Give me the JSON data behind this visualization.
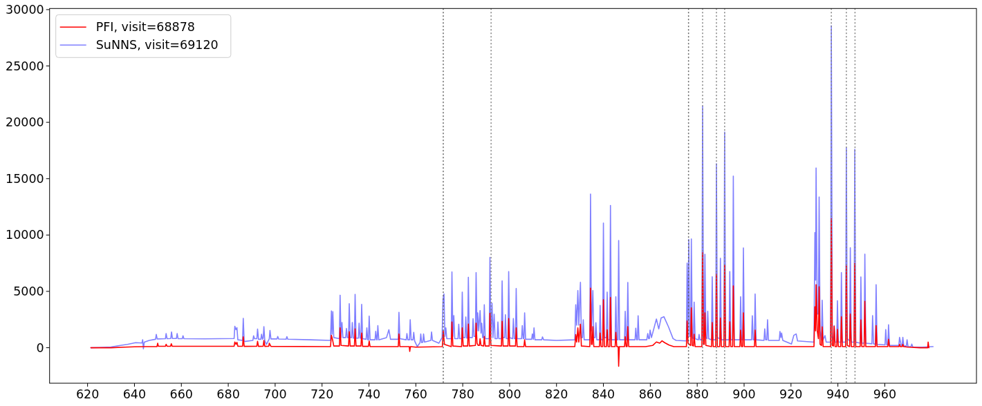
{
  "chart_data": {
    "type": "line",
    "series": [
      {
        "name": "PFI, visit=68878",
        "color": "#ff0000",
        "x": [
          621.4,
          630,
          636,
          640,
          645,
          649.6,
          649.9,
          650.2,
          653.2,
          653.5,
          653.9,
          655.4,
          655.7,
          656.1,
          682.5,
          682.8,
          683.3,
          683.7,
          684.1,
          686.1,
          686.4,
          686.8,
          692.2,
          692.5,
          692.9,
          694.9,
          695.2,
          695.6,
          697.3,
          697.5,
          698.2,
          723.6,
          724.0,
          724.5,
          725.0,
          727.4,
          727.7,
          728.1,
          731.3,
          731.6,
          732.0,
          733.8,
          734.1,
          734.5,
          736.6,
          736.9,
          737.3,
          739.8,
          740.1,
          740.5,
          752.5,
          752.8,
          753.2,
          757.2,
          757.4,
          757.7,
          760,
          771.3,
          771.7,
          772.2,
          775.1,
          775.4,
          775.8,
          779.5,
          779.8,
          780.2,
          782.1,
          782.4,
          782.8,
          785.4,
          785.7,
          786.1,
          786.6,
          787.1,
          787.4,
          787.8,
          788.9,
          789.2,
          789.6,
          791.3,
          791.6,
          792.0,
          796.5,
          796.8,
          797.2,
          799.3,
          799.6,
          800.0,
          802.5,
          802.8,
          803.2,
          806.1,
          806.4,
          806.8,
          827.8,
          828.2,
          828.6,
          829.1,
          829.5,
          830.2,
          830.6,
          834.2,
          834.5,
          834.9,
          835.2,
          835.5,
          835.9,
          838.3,
          838.6,
          839.0,
          839.7,
          840.0,
          840.4,
          841.3,
          841.6,
          842.0,
          842.7,
          843.0,
          843.4,
          845.0,
          845.3,
          845.7,
          846.3,
          846.5,
          846.8,
          849.0,
          849.3,
          849.7,
          850.1,
          850.4,
          850.8,
          858,
          861,
          862.6,
          864.0,
          865.0,
          866.1,
          868,
          870,
          875.4,
          875.7,
          876.1,
          877.2,
          877.5,
          877.9,
          878.4,
          878.7,
          879.1,
          882.0,
          882.3,
          882.7,
          883.0,
          883.3,
          883.7,
          886.1,
          886.4,
          886.8,
          887.9,
          888.2,
          888.6,
          889.6,
          889.9,
          890.3,
          891.4,
          891.7,
          892.1,
          893.6,
          893.9,
          894.3,
          895.1,
          895.4,
          895.8,
          898.2,
          898.5,
          898.9,
          899.4,
          899.7,
          900.1,
          904.4,
          904.7,
          905.1,
          929.8,
          930.2,
          930.5,
          930.7,
          931.2,
          931.7,
          932.0,
          932.4,
          933.0,
          933.3,
          933.7,
          936.9,
          937.2,
          937.6,
          938.1,
          938.4,
          938.8,
          939.5,
          939.8,
          940.2,
          941.2,
          941.5,
          941.9,
          943.3,
          943.6,
          944.0,
          945.0,
          945.3,
          945.7,
          946.9,
          947.2,
          947.6,
          949.5,
          949.8,
          950.2,
          951.2,
          951.5,
          951.9,
          956.0,
          956.3,
          956.7,
          961.3,
          961.6,
          962.0,
          966.0,
          966.3,
          966.6,
          967.4,
          967.7,
          968.0,
          970,
          975,
          978.3,
          978.5,
          978.8
        ],
        "values": [
          0,
          0,
          50,
          80,
          100,
          100,
          400,
          130,
          130,
          300,
          130,
          130,
          350,
          130,
          130,
          510,
          300,
          480,
          130,
          130,
          960,
          120,
          130,
          570,
          120,
          130,
          650,
          120,
          130,
          400,
          120,
          100,
          1100,
          700,
          150,
          150,
          1770,
          200,
          150,
          1430,
          150,
          150,
          1670,
          150,
          150,
          1310,
          120,
          120,
          600,
          100,
          100,
          1220,
          100,
          100,
          -330,
          100,
          50,
          100,
          1470,
          300,
          100,
          2280,
          150,
          100,
          1770,
          150,
          150,
          2100,
          150,
          200,
          2180,
          400,
          200,
          200,
          800,
          200,
          150,
          1000,
          150,
          150,
          3050,
          200,
          150,
          2340,
          150,
          150,
          2590,
          150,
          150,
          1770,
          100,
          100,
          700,
          100,
          100,
          1160,
          500,
          1770,
          500,
          2080,
          150,
          100,
          5290,
          300,
          300,
          1870,
          100,
          100,
          1300,
          100,
          100,
          4260,
          100,
          100,
          1590,
          100,
          100,
          4460,
          100,
          100,
          1360,
          100,
          100,
          -1650,
          100,
          100,
          980,
          100,
          100,
          1870,
          100,
          100,
          200,
          510,
          400,
          610,
          450,
          240,
          100,
          100,
          2380,
          400,
          200,
          3540,
          200,
          150,
          1200,
          100,
          100,
          8430,
          300,
          300,
          3100,
          200,
          100,
          2240,
          100,
          100,
          6520,
          100,
          100,
          2630,
          100,
          100,
          7310,
          100,
          100,
          2300,
          100,
          100,
          5480,
          100,
          100,
          1570,
          100,
          100,
          3100,
          100,
          100,
          1560,
          100,
          100,
          3630,
          1500,
          5590,
          1500,
          800,
          5410,
          300,
          200,
          1850,
          100,
          100,
          11440,
          200,
          150,
          1900,
          100,
          100,
          1620,
          100,
          100,
          2750,
          100,
          100,
          7240,
          200,
          100,
          2990,
          100,
          100,
          7470,
          100,
          100,
          2470,
          100,
          100,
          4130,
          100,
          100,
          1970,
          100,
          100,
          760,
          100,
          100,
          300,
          100,
          100,
          300,
          100,
          50,
          0,
          0,
          500,
          0
        ]
      },
      {
        "name": "SuNNS, visit=69120",
        "color": "#8080ff",
        "x": [
          621.4,
          625,
          630,
          634,
          637,
          640.5,
          643.2,
          643.5,
          643.8,
          644.2,
          646.3,
          649.0,
          649.3,
          649.7,
          653.2,
          653.5,
          653.9,
          655.5,
          655.8,
          656.2,
          657.9,
          658.2,
          658.6,
          660.4,
          660.7,
          661.1,
          670,
          682.5,
          682.8,
          683.3,
          683.7,
          684.1,
          686.1,
          686.4,
          686.8,
          690.5,
          690.8,
          691.2,
          692.2,
          692.5,
          692.9,
          693.9,
          694.2,
          694.6,
          694.9,
          695.2,
          695.6,
          696.3,
          697.5,
          697.8,
          698.2,
          700.8,
          701.1,
          701.5,
          704.7,
          705.0,
          705.4,
          715,
          723.6,
          724.0,
          724.3,
          724.6,
          725.0,
          727.4,
          727.7,
          728.1,
          728.5,
          728.9,
          730.1,
          730.4,
          730.8,
          731.3,
          731.6,
          732.0,
          732.6,
          732.9,
          733.3,
          733.8,
          734.1,
          734.5,
          735.5,
          735.8,
          736.2,
          736.6,
          736.9,
          737.3,
          738.8,
          739.1,
          739.5,
          739.8,
          740.1,
          740.5,
          742.6,
          742.9,
          743.3,
          743.5,
          743.8,
          744.2,
          747.5,
          748.5,
          749.2,
          752.5,
          752.8,
          753.2,
          755.9,
          756.2,
          756.6,
          757.3,
          757.6,
          758.0,
          758.8,
          759.1,
          759.5,
          760.6,
          761.8,
          762.1,
          762.5,
          763.0,
          763.3,
          763.7,
          766.4,
          766.7,
          767.1,
          769.8,
          771.2,
          771.6,
          772.0,
          772.4,
          772.8,
          773.2,
          775.1,
          775.4,
          775.8,
          776.2,
          776.6,
          778.0,
          778.3,
          778.7,
          779.5,
          779.8,
          780.2,
          781.0,
          781.3,
          781.7,
          782.1,
          782.4,
          782.8,
          784.1,
          784.4,
          784.8,
          785.4,
          785.7,
          786.1,
          786.4,
          786.8,
          787.4,
          787.8,
          788.1,
          788.5,
          788.9,
          789.2,
          789.6,
          791.3,
          791.6,
          792.0,
          792.5,
          792.9,
          793.4,
          793.8,
          794.7,
          795.0,
          795.4,
          796.5,
          796.8,
          797.2,
          797.9,
          798.2,
          798.6,
          799.3,
          799.6,
          800.0,
          801.3,
          801.6,
          802.0,
          802.5,
          802.8,
          803.2,
          805.1,
          805.4,
          805.8,
          806.1,
          806.4,
          806.8,
          809.4,
          809.7,
          810.1,
          810.4,
          810.8,
          813.7,
          814.0,
          814.5,
          820,
          827.8,
          828.2,
          828.6,
          829.1,
          829.5,
          830.2,
          830.6,
          831.1,
          831.4,
          831.8,
          834.2,
          834.5,
          834.9,
          835.5,
          835.9,
          836.5,
          836.8,
          837.2,
          838.3,
          838.6,
          839.0,
          839.7,
          840.0,
          840.4,
          841.3,
          841.6,
          842.0,
          842.7,
          843.0,
          843.4,
          845.0,
          845.3,
          845.7,
          846.2,
          846.5,
          846.9,
          849.0,
          849.3,
          849.7,
          850.1,
          850.4,
          850.8,
          853.5,
          853.8,
          854.2,
          854.5,
          854.8,
          855.2,
          858.5,
          858.9,
          859.3,
          859.6,
          859.9,
          860.5,
          862.6,
          863.6,
          864.6,
          865.8,
          867.8,
          869.7,
          871.0,
          875.4,
          875.7,
          876.1,
          876.4,
          876.8,
          877.2,
          877.5,
          877.9,
          878.4,
          878.7,
          879.1,
          880.5,
          880.8,
          881.2,
          882.0,
          882.3,
          882.7,
          883.0,
          883.3,
          883.7,
          884.2,
          884.5,
          884.9,
          886.1,
          886.4,
          886.8,
          887.9,
          888.2,
          888.6,
          889.6,
          889.9,
          890.3,
          891.4,
          891.7,
          892.1,
          893.6,
          893.9,
          894.3,
          895.1,
          895.4,
          895.8,
          898.2,
          898.5,
          898.9,
          899.4,
          899.7,
          900.1,
          903.2,
          903.5,
          903.9,
          904.4,
          904.7,
          905.1,
          908.5,
          908.8,
          909.2,
          909.7,
          910.0,
          910.4,
          915.0,
          915.3,
          915.7,
          916.0,
          916.5,
          920.2,
          921.2,
          922.2,
          922.8,
          929.8,
          930.2,
          930.5,
          930.7,
          931.2,
          931.7,
          932.0,
          932.4,
          933.0,
          933.3,
          933.7,
          934.5,
          935.0,
          936.9,
          937.2,
          937.6,
          938.1,
          938.4,
          938.8,
          939.5,
          939.8,
          940.2,
          941.2,
          941.5,
          941.9,
          943.3,
          943.6,
          944.0,
          945.0,
          945.3,
          945.7,
          946.9,
          947.2,
          947.6,
          949.5,
          949.8,
          950.2,
          951.2,
          951.5,
          951.9,
          954.5,
          954.8,
          955.2,
          956.0,
          956.3,
          956.7,
          960.1,
          960.4,
          960.8,
          961.3,
          961.6,
          962.0,
          966.0,
          966.3,
          967.0,
          967.4,
          967.7,
          968.1,
          969.2,
          969.5,
          969.9,
          971.2,
          971.5,
          972.0,
          976.0,
          980.6
        ],
        "values": [
          0,
          20,
          60,
          200,
          300,
          450,
          420,
          710,
          -100,
          500,
          650,
          750,
          1180,
          780,
          800,
          1260,
          800,
          820,
          1400,
          820,
          820,
          1260,
          800,
          800,
          1060,
          800,
          790,
          820,
          1900,
          1600,
          1780,
          700,
          650,
          2610,
          550,
          650,
          1060,
          800,
          800,
          1650,
          750,
          750,
          1200,
          750,
          850,
          1870,
          600,
          300,
          800,
          1530,
          780,
          780,
          1000,
          770,
          760,
          980,
          760,
          700,
          650,
          3260,
          1200,
          3200,
          900,
          800,
          4660,
          900,
          2240,
          900,
          900,
          1710,
          900,
          900,
          3910,
          900,
          900,
          2240,
          850,
          850,
          4730,
          850,
          850,
          2180,
          850,
          850,
          3850,
          800,
          750,
          1770,
          700,
          700,
          2810,
          700,
          700,
          1450,
          700,
          700,
          1960,
          700,
          900,
          1600,
          750,
          750,
          3140,
          800,
          700,
          1260,
          700,
          700,
          2490,
          700,
          700,
          1360,
          600,
          100,
          450,
          1220,
          450,
          500,
          1220,
          500,
          650,
          1400,
          650,
          400,
          900,
          4320,
          4770,
          1000,
          1770,
          800,
          800,
          6720,
          1000,
          2850,
          800,
          800,
          2080,
          800,
          800,
          4930,
          900,
          900,
          2730,
          850,
          850,
          6250,
          900,
          900,
          2570,
          1000,
          1000,
          6660,
          1500,
          3100,
          1500,
          3300,
          1300,
          2180,
          900,
          900,
          3810,
          800,
          800,
          8020,
          1000,
          3950,
          900,
          2970,
          800,
          800,
          2280,
          800,
          800,
          5930,
          900,
          900,
          2930,
          800,
          800,
          6760,
          900,
          800,
          2590,
          800,
          800,
          5250,
          800,
          800,
          1960,
          800,
          800,
          3100,
          750,
          750,
          1220,
          750,
          1770,
          700,
          700,
          960,
          700,
          650,
          700,
          3810,
          2000,
          5070,
          2000,
          5800,
          900,
          900,
          2490,
          700,
          700,
          13640,
          1500,
          5070,
          900,
          900,
          2220,
          700,
          700,
          3750,
          700,
          700,
          11060,
          900,
          900,
          4930,
          700,
          700,
          12630,
          700,
          700,
          4520,
          700,
          700,
          9510,
          700,
          700,
          3240,
          700,
          700,
          5790,
          700,
          700,
          1730,
          700,
          700,
          2830,
          700,
          700,
          1260,
          800,
          800,
          1570,
          900,
          2550,
          1670,
          2640,
          2750,
          1830,
          810,
          650,
          600,
          7510,
          1000,
          9610,
          1000,
          1000,
          9650,
          900,
          800,
          4050,
          800,
          700,
          1180,
          700,
          700,
          21430,
          1000,
          1000,
          8290,
          900,
          800,
          3240,
          800,
          700,
          6290,
          700,
          700,
          16330,
          900,
          800,
          7940,
          700,
          700,
          19140,
          700,
          700,
          6760,
          700,
          700,
          15230,
          700,
          700,
          4520,
          700,
          700,
          8860,
          700,
          700,
          2830,
          700,
          700,
          4770,
          700,
          650,
          1670,
          700,
          700,
          2490,
          650,
          650,
          1440,
          900,
          1300,
          650,
          330,
          1100,
          1220,
          600,
          500,
          10220,
          6000,
          15950,
          3000,
          3000,
          13380,
          1500,
          700,
          4220,
          700,
          1080,
          500,
          500,
          28570,
          1000,
          700,
          1970,
          500,
          500,
          4170,
          500,
          500,
          6670,
          500,
          500,
          17740,
          800,
          600,
          8870,
          500,
          500,
          17600,
          500,
          400,
          6280,
          400,
          400,
          8300,
          400,
          350,
          2850,
          350,
          300,
          5590,
          300,
          250,
          1610,
          250,
          250,
          2040,
          200,
          200,
          920,
          200,
          200,
          920,
          150,
          150,
          710,
          100,
          100,
          320,
          50,
          50,
          100
        ]
      }
    ],
    "xlim": [
      603.8,
      999.1
    ],
    "xticks": [
      620,
      640,
      660,
      680,
      700,
      720,
      740,
      760,
      780,
      800,
      820,
      840,
      860,
      880,
      900,
      920,
      940,
      960
    ],
    "ylim": [
      -3150,
      30100
    ],
    "yticks": [
      0,
      5000,
      10000,
      15000,
      20000,
      25000,
      30000
    ],
    "legend": "top left",
    "ref_lines": [
      {
        "axis": "x",
        "value": 771.7,
        "color": "#606060",
        "line_style": "dotted"
      },
      {
        "axis": "x",
        "value": 792.1,
        "color": "#808080",
        "line_style": "dotted"
      },
      {
        "axis": "x",
        "value": 876.3,
        "color": "#606060",
        "line_style": "dotted"
      },
      {
        "axis": "x",
        "value": 882.3,
        "color": "#808080",
        "line_style": "dotted"
      },
      {
        "axis": "x",
        "value": 888.2,
        "color": "#808080",
        "line_style": "dotted"
      },
      {
        "axis": "x",
        "value": 891.7,
        "color": "#808080",
        "line_style": "dotted"
      },
      {
        "axis": "x",
        "value": 937.2,
        "color": "#808080",
        "line_style": "dotted"
      },
      {
        "axis": "x",
        "value": 943.6,
        "color": "#808080",
        "line_style": "dotted"
      },
      {
        "axis": "x",
        "value": 947.3,
        "color": "#808080",
        "line_style": "dotted"
      }
    ]
  }
}
